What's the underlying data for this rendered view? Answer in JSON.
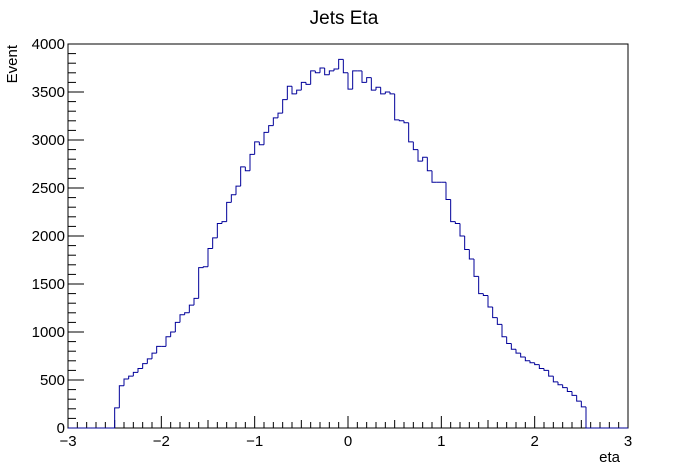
{
  "chart_data": {
    "type": "histogram",
    "title": "Jets Eta",
    "x_label": "eta",
    "y_label": "Event",
    "color": "#000099",
    "bins": [
      -3,
      -2.95,
      -2.9,
      -2.85,
      -2.8,
      -2.75,
      -2.7,
      -2.65,
      -2.6,
      -2.55,
      -2.5,
      -2.45,
      -2.4,
      -2.35,
      -2.3,
      -2.25,
      -2.2,
      -2.15,
      -2.1,
      -2.05,
      -2,
      -1.95,
      -1.9,
      -1.85,
      -1.8,
      -1.75,
      -1.7,
      -1.65,
      -1.6,
      -1.55,
      -1.5,
      -1.45,
      -1.4,
      -1.35,
      -1.3,
      -1.25,
      -1.2,
      -1.15,
      -1.1,
      -1.05,
      -1,
      -0.95,
      -0.9,
      -0.85,
      -0.8,
      -0.75,
      -0.7,
      -0.65,
      -0.6,
      -0.55,
      -0.5,
      -0.45,
      -0.4,
      -0.35,
      -0.3,
      -0.25,
      -0.2,
      -0.15,
      -0.1,
      -0.05,
      0,
      0.05,
      0.1,
      0.15,
      0.2,
      0.25,
      0.3,
      0.35,
      0.4,
      0.45,
      0.5,
      0.55,
      0.6,
      0.65,
      0.7,
      0.75,
      0.8,
      0.85,
      0.9,
      0.95,
      1,
      1.05,
      1.1,
      1.15,
      1.2,
      1.25,
      1.3,
      1.35,
      1.4,
      1.45,
      1.5,
      1.55,
      1.6,
      1.65,
      1.7,
      1.75,
      1.8,
      1.85,
      1.9,
      1.95,
      2,
      2.05,
      2.1,
      2.15,
      2.2,
      2.25,
      2.3,
      2.35,
      2.4,
      2.45,
      2.5,
      2.55,
      2.6,
      2.65,
      2.7,
      2.75,
      2.8,
      2.85,
      2.9,
      2.95,
      3
    ],
    "values": [
      0,
      0,
      0,
      0,
      0,
      0,
      0,
      0,
      0,
      0,
      210,
      440,
      510,
      540,
      580,
      620,
      670,
      720,
      780,
      850,
      850,
      950,
      1000,
      1100,
      1180,
      1200,
      1280,
      1350,
      1670,
      1680,
      1870,
      1980,
      2130,
      2150,
      2350,
      2430,
      2520,
      2720,
      2680,
      2850,
      2980,
      2950,
      3080,
      3150,
      3230,
      3280,
      3420,
      3560,
      3480,
      3520,
      3600,
      3580,
      3720,
      3700,
      3750,
      3680,
      3720,
      3740,
      3840,
      3700,
      3530,
      3720,
      3720,
      3600,
      3650,
      3520,
      3550,
      3480,
      3500,
      3480,
      3210,
      3200,
      3180,
      2980,
      2900,
      2780,
      2820,
      2680,
      2560,
      2560,
      2560,
      2380,
      2150,
      2130,
      2000,
      1860,
      1760,
      1580,
      1400,
      1380,
      1260,
      1150,
      1080,
      950,
      880,
      820,
      780,
      740,
      700,
      680,
      660,
      620,
      600,
      540,
      480,
      450,
      420,
      380,
      340,
      280,
      220,
      0,
      0,
      0,
      0,
      0,
      0,
      0,
      0,
      0
    ],
    "xlim": [
      -3,
      3
    ],
    "ylim": [
      0,
      4000
    ],
    "xticks": [
      {
        "value": -3,
        "label": "−3"
      },
      {
        "value": -2,
        "label": "−2"
      },
      {
        "value": -1,
        "label": "−1"
      },
      0,
      1,
      2,
      3
    ],
    "yticks": [
      0,
      500,
      1000,
      1500,
      2000,
      2500,
      3000,
      3500,
      4000
    ]
  }
}
